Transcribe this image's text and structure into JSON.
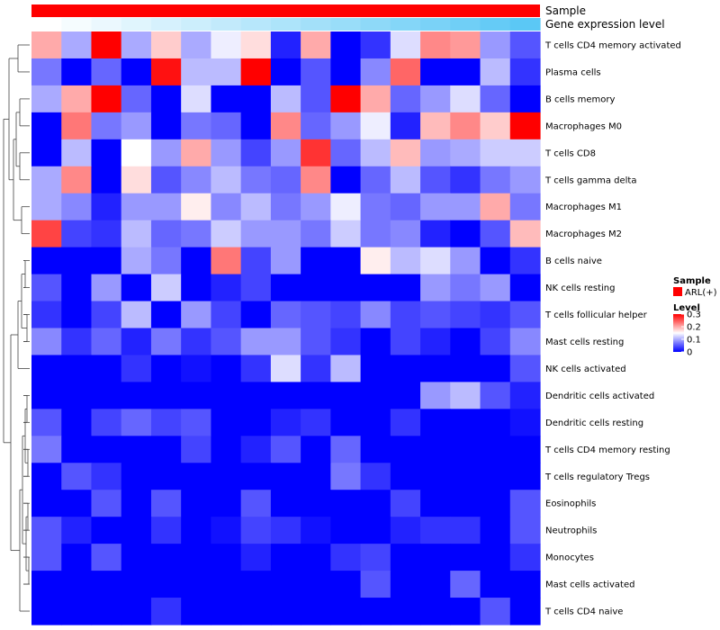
{
  "chart_data": {
    "type": "heatmap",
    "rows": [
      "T cells CD4 memory activated",
      "Plasma cells",
      "B cells memory",
      "Macrophages M0",
      "T cells CD8",
      "T cells gamma delta",
      "Macrophages M1",
      "Macrophages M2",
      "B cells naive",
      "NK cells resting",
      "T cells follicular helper",
      "Mast cells resting",
      "NK cells activated",
      "Dendritic cells activated",
      "Dendritic cells resting",
      "T cells CD4 memory resting",
      "T cells regulatory  Tregs",
      "Eosinophils",
      "Neutrophils",
      "Monocytes",
      "Mast cells activated",
      "T cells CD4 naive"
    ],
    "n_samples": 17,
    "values": [
      [
        0.2,
        0.1,
        0.3,
        0.1,
        0.18,
        0.1,
        0.14,
        0.17,
        0.02,
        0.2,
        0.0,
        0.03,
        0.13,
        0.22,
        0.21,
        0.09,
        0.05
      ],
      [
        0.07,
        0.0,
        0.06,
        0.0,
        0.29,
        0.11,
        0.11,
        0.3,
        0.0,
        0.05,
        0.0,
        0.08,
        0.24,
        0.0,
        0.0,
        0.11,
        0.03
      ],
      [
        0.1,
        0.2,
        0.3,
        0.06,
        0.0,
        0.13,
        0.0,
        0.0,
        0.11,
        0.05,
        0.3,
        0.2,
        0.06,
        0.09,
        0.13,
        0.06,
        0.0
      ],
      [
        0.0,
        0.23,
        0.07,
        0.09,
        0.0,
        0.07,
        0.06,
        0.0,
        0.22,
        0.06,
        0.09,
        0.14,
        0.02,
        0.19,
        0.22,
        0.18,
        0.3
      ],
      [
        0.0,
        0.11,
        0.0,
        0.15,
        0.09,
        0.2,
        0.09,
        0.04,
        0.09,
        0.27,
        0.06,
        0.11,
        0.19,
        0.09,
        0.1,
        0.12,
        0.12
      ],
      [
        0.1,
        0.22,
        0.0,
        0.17,
        0.05,
        0.08,
        0.11,
        0.07,
        0.06,
        0.22,
        0.0,
        0.06,
        0.11,
        0.05,
        0.03,
        0.07,
        0.09
      ],
      [
        0.1,
        0.08,
        0.02,
        0.09,
        0.09,
        0.16,
        0.08,
        0.11,
        0.07,
        0.09,
        0.14,
        0.07,
        0.06,
        0.09,
        0.09,
        0.2,
        0.07
      ],
      [
        0.26,
        0.04,
        0.03,
        0.11,
        0.06,
        0.07,
        0.12,
        0.09,
        0.09,
        0.07,
        0.12,
        0.07,
        0.08,
        0.02,
        0.0,
        0.05,
        0.19
      ],
      [
        0.0,
        0.0,
        0.0,
        0.1,
        0.07,
        0.0,
        0.23,
        0.04,
        0.09,
        0.0,
        0.0,
        0.16,
        0.11,
        0.13,
        0.09,
        0.0,
        0.03
      ],
      [
        0.05,
        0.0,
        0.09,
        0.0,
        0.12,
        0.0,
        0.02,
        0.04,
        0.0,
        0.0,
        0.0,
        0.0,
        0.0,
        0.09,
        0.07,
        0.09,
        0.0
      ],
      [
        0.03,
        0.0,
        0.04,
        0.11,
        0.0,
        0.09,
        0.04,
        0.0,
        0.06,
        0.05,
        0.04,
        0.08,
        0.04,
        0.05,
        0.04,
        0.03,
        0.05
      ],
      [
        0.08,
        0.03,
        0.06,
        0.02,
        0.07,
        0.03,
        0.05,
        0.09,
        0.09,
        0.05,
        0.03,
        0.0,
        0.04,
        0.02,
        0.0,
        0.04,
        0.08
      ],
      [
        0.0,
        0.0,
        0.0,
        0.03,
        0.0,
        0.01,
        0.0,
        0.03,
        0.13,
        0.03,
        0.11,
        0.0,
        0.0,
        0.0,
        0.0,
        0.0,
        0.05
      ],
      [
        0.0,
        0.0,
        0.0,
        0.0,
        0.0,
        0.0,
        0.0,
        0.0,
        0.0,
        0.0,
        0.0,
        0.0,
        0.0,
        0.09,
        0.11,
        0.05,
        0.02
      ],
      [
        0.05,
        0.0,
        0.04,
        0.06,
        0.04,
        0.05,
        0.0,
        0.0,
        0.02,
        0.03,
        0.0,
        0.0,
        0.03,
        0.0,
        0.0,
        0.0,
        0.01
      ],
      [
        0.07,
        0.0,
        0.0,
        0.0,
        0.0,
        0.04,
        0.0,
        0.02,
        0.05,
        0.0,
        0.06,
        0.0,
        0.0,
        0.0,
        0.0,
        0.0,
        0.0
      ],
      [
        0.0,
        0.05,
        0.03,
        0.0,
        0.0,
        0.0,
        0.0,
        0.0,
        0.0,
        0.0,
        0.07,
        0.03,
        0.0,
        0.0,
        0.0,
        0.0,
        0.0
      ],
      [
        0.0,
        0.0,
        0.05,
        0.0,
        0.05,
        0.0,
        0.0,
        0.05,
        0.0,
        0.0,
        0.0,
        0.0,
        0.04,
        0.0,
        0.0,
        0.0,
        0.05
      ],
      [
        0.05,
        0.02,
        0.0,
        0.0,
        0.03,
        0.0,
        0.01,
        0.04,
        0.03,
        0.01,
        0.0,
        0.0,
        0.02,
        0.03,
        0.03,
        0.0,
        0.05
      ],
      [
        0.05,
        0.0,
        0.05,
        0.0,
        0.0,
        0.0,
        0.0,
        0.02,
        0.0,
        0.0,
        0.03,
        0.04,
        0.0,
        0.0,
        0.0,
        0.0,
        0.03
      ],
      [
        0.0,
        0.0,
        0.0,
        0.0,
        0.0,
        0.0,
        0.0,
        0.0,
        0.0,
        0.0,
        0.0,
        0.05,
        0.0,
        0.0,
        0.06,
        0.0,
        0.0
      ],
      [
        0.0,
        0.0,
        0.0,
        0.0,
        0.03,
        0.0,
        0.0,
        0.0,
        0.0,
        0.0,
        0.0,
        0.0,
        0.0,
        0.0,
        0.0,
        0.05,
        0.0
      ]
    ],
    "column_annotations": [
      {
        "name": "Sample",
        "color": "#ff0000"
      },
      {
        "name": "Gene expression level",
        "gradient": [
          "#ffffff",
          "#5bc8f5"
        ]
      }
    ],
    "color_scale": {
      "low": "#0000ff",
      "mid": "#ffffff",
      "high": "#ff0000",
      "min": 0,
      "max": 0.3,
      "mid_value": 0.15
    },
    "legend": {
      "sample_title": "Sample",
      "sample_item": "ARL(+)",
      "sample_color": "#ff0000",
      "level_title": "Level",
      "ticks": [
        "0.3",
        "0.2",
        "0.1",
        "0"
      ],
      "tick_values": [
        0.3,
        0.2,
        0.1,
        0
      ],
      "position": "right"
    },
    "dendrogram": "rows"
  }
}
